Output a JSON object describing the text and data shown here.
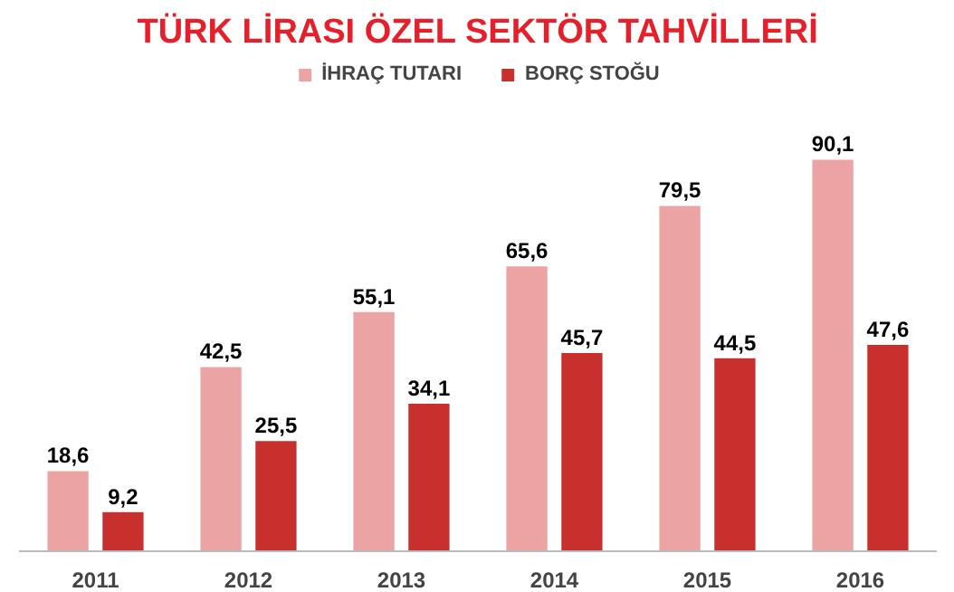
{
  "chart_data": {
    "type": "bar",
    "title": "TÜRK LİRASI ÖZEL SEKTÖR TAHVİLLERİ",
    "categories": [
      "2011",
      "2012",
      "2013",
      "2014",
      "2015",
      "2016"
    ],
    "series": [
      {
        "name": "İHRAÇ TUTARI",
        "color": "#eba3a3",
        "values": [
          18.6,
          42.5,
          55.1,
          65.6,
          79.5,
          90.1
        ],
        "value_labels": [
          "18,6",
          "42,5",
          "55,1",
          "65,6",
          "79,5",
          "90,1"
        ]
      },
      {
        "name": "BORÇ STOĞU",
        "color": "#c8302e",
        "values": [
          9.2,
          25.5,
          34.1,
          45.7,
          44.5,
          47.6
        ],
        "value_labels": [
          "9,2",
          "25,5",
          "34,1",
          "45,7",
          "44,5",
          "47,6"
        ]
      }
    ],
    "legend": "top",
    "grid": false
  }
}
